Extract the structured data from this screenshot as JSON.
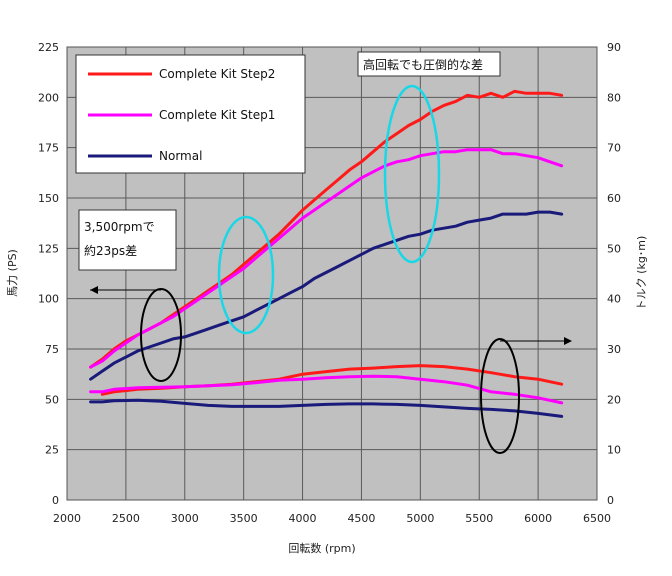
{
  "chart_data": {
    "type": "line",
    "title": "",
    "xlabel": "回転数 (rpm)",
    "ylabel_left": "馬力 (PS)",
    "ylabel_right": "トルク (kg･m)",
    "xlim": [
      2000,
      6500
    ],
    "xticks": [
      "2000",
      "2500",
      "3000",
      "3500",
      "4000",
      "4500",
      "5000",
      "5500",
      "6000",
      "6500"
    ],
    "ylim_left": [
      0,
      225
    ],
    "yticks_left": [
      "0",
      "25",
      "50",
      "75",
      "100",
      "125",
      "150",
      "175",
      "200",
      "225"
    ],
    "ylim_right": [
      0,
      90
    ],
    "yticks_right": [
      "0",
      "10",
      "20",
      "30",
      "40",
      "50",
      "60",
      "70",
      "80",
      "90"
    ],
    "grid": true,
    "background": "#c0c0c0",
    "legend_position": "top-left",
    "series": [
      {
        "name": "Complete Kit Step2",
        "axis": "left",
        "color": "#ff1a1a",
        "x": [
          2200,
          2300,
          2400,
          2500,
          2600,
          2700,
          2800,
          2900,
          3000,
          3100,
          3200,
          3300,
          3400,
          3500,
          3600,
          3700,
          3800,
          3900,
          4000,
          4100,
          4200,
          4300,
          4400,
          4500,
          4600,
          4700,
          4800,
          4900,
          5000,
          5100,
          5200,
          5300,
          5400,
          5500,
          5600,
          5700,
          5800,
          5900,
          6000,
          6100,
          6200
        ],
        "y": [
          66,
          70,
          75,
          79,
          82,
          85,
          88,
          92,
          96,
          100,
          104,
          108,
          112,
          117,
          122,
          127,
          132,
          138,
          144,
          149,
          154,
          159,
          164,
          168,
          173,
          178,
          182,
          186,
          189,
          193,
          196,
          198,
          201,
          200,
          202,
          200,
          203,
          202,
          202,
          202,
          201
        ]
      },
      {
        "name": "Complete Kit Step1",
        "axis": "left",
        "color": "#ff00ff",
        "x": [
          2200,
          2300,
          2400,
          2500,
          2600,
          2700,
          2800,
          2900,
          3000,
          3100,
          3200,
          3300,
          3400,
          3500,
          3600,
          3700,
          3800,
          3900,
          4000,
          4100,
          4200,
          4300,
          4400,
          4500,
          4600,
          4700,
          4800,
          4900,
          5000,
          5100,
          5200,
          5300,
          5400,
          5500,
          5600,
          5700,
          5800,
          5900,
          6000,
          6100,
          6200
        ],
        "y": [
          66,
          69,
          74,
          78,
          82,
          85,
          88,
          91,
          95,
          99,
          103,
          107,
          111,
          115,
          120,
          125,
          130,
          135,
          140,
          144,
          148,
          152,
          156,
          160,
          163,
          166,
          168,
          169,
          171,
          172,
          173,
          173,
          174,
          174,
          174,
          172,
          172,
          171,
          170,
          168,
          166
        ]
      },
      {
        "name": "Normal",
        "axis": "left",
        "color": "#1a1a7a",
        "x": [
          2200,
          2300,
          2400,
          2500,
          2600,
          2700,
          2800,
          2900,
          3000,
          3100,
          3200,
          3300,
          3400,
          3500,
          3600,
          3700,
          3800,
          3900,
          4000,
          4100,
          4200,
          4300,
          4400,
          4500,
          4600,
          4700,
          4800,
          4900,
          5000,
          5100,
          5200,
          5300,
          5400,
          5500,
          5600,
          5700,
          5800,
          5900,
          6000,
          6100,
          6200
        ],
        "y": [
          60,
          64,
          68,
          71,
          74,
          76,
          78,
          80,
          81,
          83,
          85,
          87,
          89,
          91,
          94,
          97,
          100,
          103,
          106,
          110,
          113,
          116,
          119,
          122,
          125,
          127,
          129,
          131,
          132,
          134,
          135,
          136,
          138,
          139,
          140,
          142,
          142,
          142,
          143,
          143,
          142
        ]
      },
      {
        "name": "Complete Kit Step2 (torque)",
        "axis": "right",
        "color": "#ff1a1a",
        "x": [
          2300,
          2400,
          2600,
          2800,
          3000,
          3200,
          3400,
          3600,
          3800,
          4000,
          4200,
          4400,
          4600,
          4800,
          5000,
          5200,
          5400,
          5600,
          5800,
          6000,
          6200
        ],
        "y": [
          21,
          21.5,
          22,
          22.2,
          22.5,
          22.7,
          23,
          23.5,
          24,
          25,
          25.5,
          26,
          26.2,
          26.5,
          26.7,
          26.5,
          26,
          25.3,
          24.5,
          24,
          23
        ]
      },
      {
        "name": "Complete Kit Step1 (torque)",
        "axis": "right",
        "color": "#ff00ff",
        "x": [
          2200,
          2300,
          2400,
          2600,
          2800,
          3000,
          3200,
          3400,
          3600,
          3800,
          4000,
          4200,
          4400,
          4600,
          4800,
          5000,
          5200,
          5400,
          5600,
          5800,
          6000,
          6200
        ],
        "y": [
          21.5,
          21.5,
          22,
          22.3,
          22.4,
          22.5,
          22.7,
          22.9,
          23.3,
          23.8,
          24,
          24.3,
          24.5,
          24.6,
          24.5,
          24,
          23.5,
          22.8,
          21.5,
          21,
          20.3,
          19.3
        ]
      },
      {
        "name": "Normal (torque)",
        "axis": "right",
        "color": "#1a1a7a",
        "x": [
          2200,
          2300,
          2400,
          2600,
          2800,
          3000,
          3200,
          3400,
          3600,
          3800,
          4000,
          4200,
          4400,
          4600,
          4800,
          5000,
          5200,
          5400,
          5600,
          5800,
          6000,
          6200
        ],
        "y": [
          19.5,
          19.5,
          19.7,
          19.8,
          19.6,
          19.2,
          18.8,
          18.6,
          18.6,
          18.6,
          18.8,
          19,
          19.1,
          19.1,
          19,
          18.8,
          18.5,
          18.2,
          18,
          17.7,
          17.2,
          16.6
        ]
      }
    ],
    "legend": [
      {
        "label": "Complete Kit Step2",
        "color": "#ff1a1a"
      },
      {
        "label": "Complete Kit Step1",
        "color": "#ff00ff"
      },
      {
        "label": "Normal",
        "color": "#1a1a7a"
      }
    ],
    "annotations": {
      "rpm_note_line1": "3,500rpmで",
      "rpm_note_line2": "約23ps差",
      "high_rpm_note": "高回転でも圧倒的な差"
    }
  }
}
